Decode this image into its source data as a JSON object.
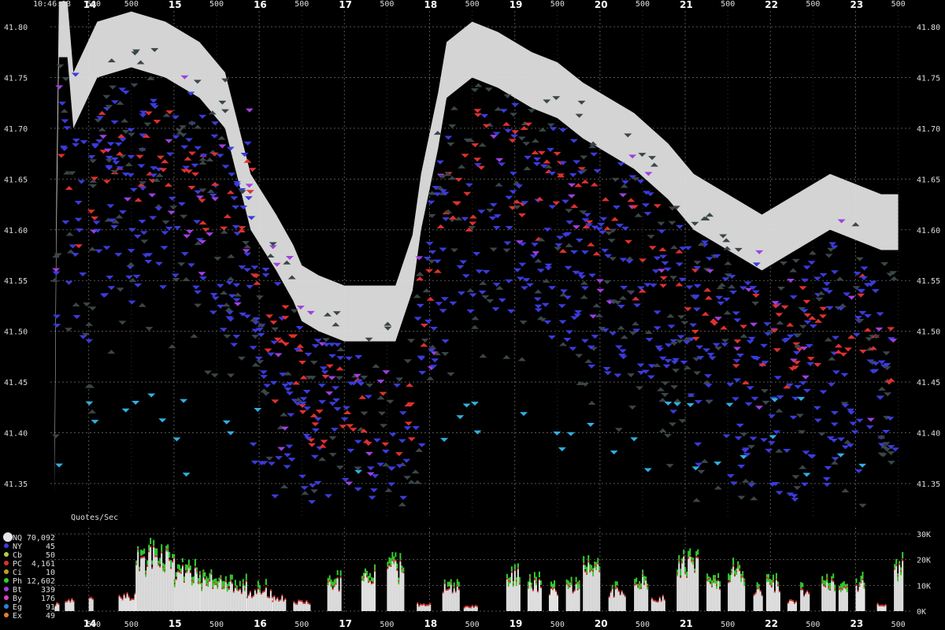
{
  "timestamp": "10:46:13",
  "chart_data": [
    {
      "type": "scatter",
      "name": "quotes",
      "ylim": [
        41.32,
        41.82
      ],
      "xlim": [
        13.55,
        23.55
      ],
      "y_ticks": [
        "41.35",
        "41.40",
        "41.45",
        "41.50",
        "41.55",
        "41.60",
        "41.65",
        "41.70",
        "41.75",
        "41.80"
      ],
      "x_ticks_major": [
        "14",
        "15",
        "16",
        "17",
        "18",
        "19",
        "20",
        "21",
        "22",
        "23"
      ],
      "x_ticks_minor": [
        "500",
        "500",
        "500",
        "500",
        "500",
        "500",
        "500",
        "500",
        "500",
        "500",
        "500"
      ],
      "nbbo_path": [
        [
          13.6,
          41.36
        ],
        [
          13.62,
          41.6
        ],
        [
          13.65,
          41.79
        ],
        [
          13.75,
          41.79
        ],
        [
          13.82,
          41.72
        ],
        [
          14.1,
          41.77
        ],
        [
          14.5,
          41.78
        ],
        [
          14.9,
          41.77
        ],
        [
          15.3,
          41.75
        ],
        [
          15.6,
          41.72
        ],
        [
          15.9,
          41.62
        ],
        [
          16.2,
          41.58
        ],
        [
          16.4,
          41.55
        ],
        [
          16.5,
          41.53
        ],
        [
          16.7,
          41.52
        ],
        [
          17.0,
          41.51
        ],
        [
          17.3,
          41.51
        ],
        [
          17.6,
          41.51
        ],
        [
          17.8,
          41.56
        ],
        [
          17.9,
          41.62
        ],
        [
          18.0,
          41.66
        ],
        [
          18.1,
          41.7
        ],
        [
          18.2,
          41.75
        ],
        [
          18.5,
          41.77
        ],
        [
          18.8,
          41.76
        ],
        [
          19.2,
          41.74
        ],
        [
          19.5,
          41.73
        ],
        [
          19.8,
          41.71
        ],
        [
          20.0,
          41.7
        ],
        [
          20.4,
          41.68
        ],
        [
          20.8,
          41.65
        ],
        [
          21.1,
          41.62
        ],
        [
          21.5,
          41.6
        ],
        [
          21.9,
          41.58
        ],
        [
          22.3,
          41.6
        ],
        [
          22.7,
          41.62
        ],
        [
          23.0,
          41.61
        ],
        [
          23.3,
          41.6
        ],
        [
          23.5,
          41.6
        ]
      ],
      "colors": {
        "nbbo": "#e6e6e6",
        "bid_marker": "#3b3bdc",
        "ask_marker": "#e03030",
        "other_marker": "#3a4648",
        "purple_marker": "#a040e0",
        "cyan_marker": "#30b0e0",
        "gold_marker": "#d4a020",
        "grid": "#555555"
      },
      "axis_note": "Quotes/Sec"
    },
    {
      "type": "area",
      "name": "quotes_per_sec",
      "ylim": [
        0,
        30000
      ],
      "y_ticks": [
        "0K",
        "10K",
        "20K",
        "30K"
      ],
      "x_ticks_major": [
        "14",
        "15",
        "16",
        "17",
        "18",
        "19",
        "20",
        "21",
        "22",
        "23"
      ],
      "x_ticks_minor": [
        "500",
        "500",
        "500",
        "500",
        "500",
        "500",
        "500",
        "500",
        "500",
        "500",
        "500"
      ],
      "legend": [
        {
          "symbol": "NQ",
          "count": "70,092",
          "color": "#e6e6e6"
        },
        {
          "symbol": "NY",
          "count": "45",
          "color": "#3b3bdc"
        },
        {
          "symbol": "Cb",
          "count": "50",
          "color": "#b0d040"
        },
        {
          "symbol": "PC",
          "count": "4,161",
          "color": "#e03030"
        },
        {
          "symbol": "Ci",
          "count": "10",
          "color": "#c0a020"
        },
        {
          "symbol": "Ph",
          "count": "12,602",
          "color": "#30d030"
        },
        {
          "symbol": "Bt",
          "count": "339",
          "color": "#a040e0"
        },
        {
          "symbol": "By",
          "count": "176",
          "color": "#e040c0"
        },
        {
          "symbol": "Eg",
          "count": "91",
          "color": "#3080e0"
        },
        {
          "symbol": "Ex",
          "count": "49",
          "color": "#e08030"
        }
      ],
      "bursts": [
        [
          13.6,
          13.65,
          3000
        ],
        [
          13.72,
          13.82,
          5000
        ],
        [
          14.0,
          14.05,
          6000
        ],
        [
          14.35,
          14.55,
          7000
        ],
        [
          14.55,
          15.0,
          25000
        ],
        [
          15.0,
          15.3,
          18000
        ],
        [
          15.3,
          15.6,
          15000
        ],
        [
          15.6,
          15.85,
          12000
        ],
        [
          15.85,
          16.15,
          9000
        ],
        [
          16.15,
          16.3,
          6000
        ],
        [
          16.4,
          16.6,
          4000
        ],
        [
          16.8,
          16.95,
          13000
        ],
        [
          17.2,
          17.35,
          16000
        ],
        [
          17.5,
          17.7,
          20000
        ],
        [
          17.85,
          18.0,
          3000
        ],
        [
          18.15,
          18.35,
          12000
        ],
        [
          18.4,
          18.55,
          2000
        ],
        [
          18.9,
          19.05,
          17000
        ],
        [
          19.15,
          19.3,
          13000
        ],
        [
          19.4,
          19.5,
          9000
        ],
        [
          19.6,
          19.75,
          11000
        ],
        [
          19.8,
          20.0,
          20000
        ],
        [
          20.1,
          20.3,
          9000
        ],
        [
          20.4,
          20.55,
          15000
        ],
        [
          20.6,
          20.75,
          6000
        ],
        [
          20.9,
          21.15,
          22000
        ],
        [
          21.25,
          21.4,
          14000
        ],
        [
          21.5,
          21.7,
          18000
        ],
        [
          21.8,
          21.9,
          10000
        ],
        [
          21.95,
          22.1,
          13000
        ],
        [
          22.2,
          22.3,
          4000
        ],
        [
          22.35,
          22.45,
          9000
        ],
        [
          22.6,
          22.75,
          14000
        ],
        [
          22.8,
          22.9,
          10000
        ],
        [
          23.0,
          23.1,
          13000
        ],
        [
          23.25,
          23.35,
          3000
        ],
        [
          23.45,
          23.55,
          23000
        ]
      ]
    }
  ]
}
